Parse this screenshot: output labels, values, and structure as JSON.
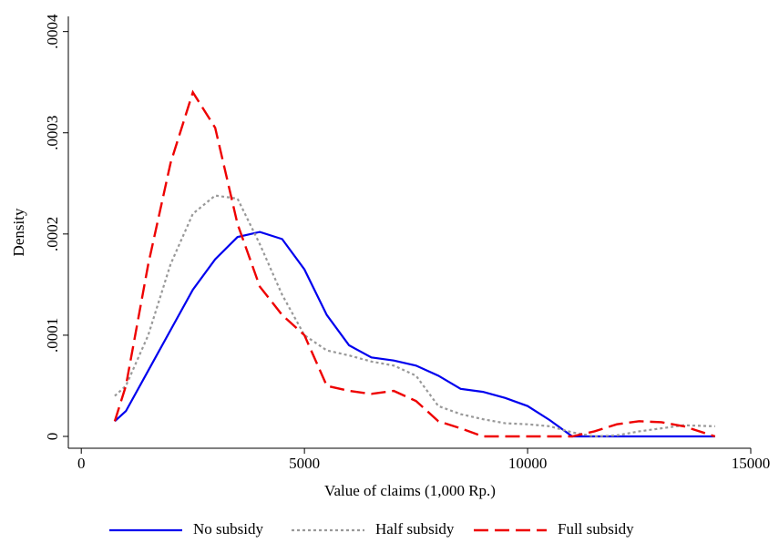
{
  "chart_data": {
    "type": "line",
    "x_label": "Value of claims (1,000 Rp.)",
    "y_label": "Density",
    "x": [
      750,
      1000,
      1500,
      2000,
      2500,
      3000,
      3500,
      4000,
      4500,
      5000,
      5500,
      6000,
      6500,
      7000,
      7500,
      8000,
      8500,
      9000,
      9500,
      10000,
      10500,
      11000,
      11500,
      12000,
      12500,
      13000,
      13500,
      14200
    ],
    "series": [
      {
        "name": "No subsidy",
        "color": "#0000ee",
        "dash": "solid",
        "values": [
          1.5e-05,
          2.5e-05,
          6.5e-05,
          0.000105,
          0.000145,
          0.000175,
          0.000197,
          0.000202,
          0.000195,
          0.000165,
          0.00012,
          9e-05,
          7.8e-05,
          7.5e-05,
          7e-05,
          6e-05,
          4.7e-05,
          4.4e-05,
          3.8e-05,
          3e-05,
          1.6e-05,
          0,
          0,
          0,
          0,
          0,
          0,
          0
        ]
      },
      {
        "name": "Half subsidy",
        "color": "#999999",
        "dash": "dotted",
        "values": [
          4e-05,
          5e-05,
          0.0001,
          0.00017,
          0.00022,
          0.000238,
          0.000235,
          0.00019,
          0.00014,
          0.0001,
          8.5e-05,
          8e-05,
          7.4e-05,
          7e-05,
          6e-05,
          3e-05,
          2.2e-05,
          1.7e-05,
          1.3e-05,
          1.2e-05,
          1e-05,
          4e-06,
          0,
          1e-06,
          5e-06,
          8e-06,
          1.1e-05,
          1e-05
        ]
      },
      {
        "name": "Full subsidy",
        "color": "#ee0000",
        "dash": "dashed",
        "values": [
          1.5e-05,
          5e-05,
          0.00017,
          0.00027,
          0.00034,
          0.000305,
          0.00021,
          0.000148,
          0.00012,
          0.0001,
          5e-05,
          4.5e-05,
          4.2e-05,
          4.5e-05,
          3.5e-05,
          1.5e-05,
          8e-06,
          0,
          0,
          0,
          0,
          0,
          5e-06,
          1.2e-05,
          1.5e-05,
          1.4e-05,
          1e-05,
          0
        ]
      }
    ],
    "xlim": [
      -290,
      15000
    ],
    "ylim": [
      -1.17e-05,
      0.000415
    ],
    "xticks": [
      0,
      5000,
      10000,
      15000
    ],
    "yticks": [
      {
        "value": 0,
        "label": "0"
      },
      {
        "value": 0.0001,
        "label": ".0001"
      },
      {
        "value": 0.0002,
        "label": ".0002"
      },
      {
        "value": 0.0003,
        "label": ".0003"
      },
      {
        "value": 0.0004,
        "label": ".0004"
      }
    ],
    "grid": false,
    "legend": "bottom"
  }
}
